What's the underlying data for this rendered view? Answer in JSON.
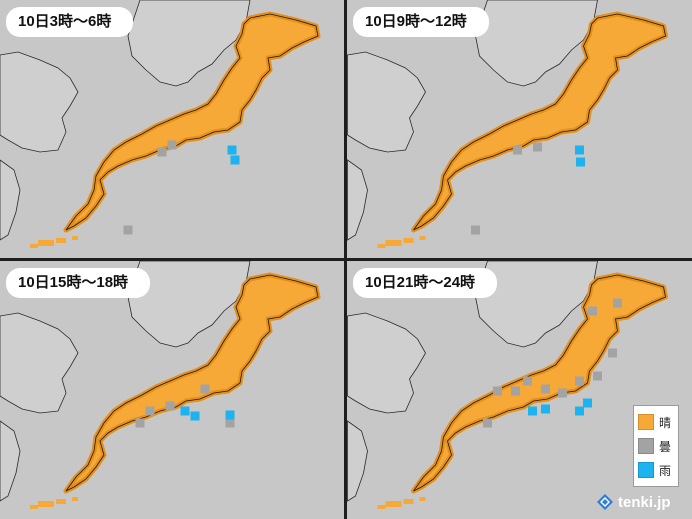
{
  "panels": [
    {
      "title": "10日3時〜6時",
      "clouds": [
        [
          172,
          145
        ],
        [
          162,
          152
        ],
        [
          128,
          230
        ]
      ],
      "rain": [
        [
          232,
          150
        ],
        [
          235,
          160
        ]
      ]
    },
    {
      "title": "10日9時〜12時",
      "clouds": [
        [
          190,
          147
        ],
        [
          170,
          150
        ],
        [
          128,
          230
        ]
      ],
      "rain": [
        [
          232,
          150
        ],
        [
          233,
          162
        ]
      ]
    },
    {
      "title": "10日15時〜18時",
      "clouds": [
        [
          150,
          400
        ],
        [
          170,
          395
        ],
        [
          205,
          378
        ],
        [
          230,
          412
        ],
        [
          140,
          412
        ]
      ],
      "rain": [
        [
          185,
          400
        ],
        [
          195,
          405
        ],
        [
          230,
          404
        ]
      ]
    },
    {
      "title": "10日21時〜24時",
      "clouds": [
        [
          150,
          380
        ],
        [
          168,
          380
        ],
        [
          180,
          370
        ],
        [
          198,
          378
        ],
        [
          215,
          382
        ],
        [
          232,
          370
        ],
        [
          250,
          365
        ],
        [
          265,
          342
        ],
        [
          245,
          300
        ],
        [
          270,
          292
        ],
        [
          140,
          412
        ]
      ],
      "rain": [
        [
          185,
          400
        ],
        [
          198,
          398
        ],
        [
          232,
          400
        ],
        [
          240,
          392
        ]
      ]
    }
  ],
  "legend": [
    {
      "label": "晴",
      "color": "#f6a937"
    },
    {
      "label": "曇",
      "color": "#a3a3a3"
    },
    {
      "label": "雨",
      "color": "#1eb3ef"
    }
  ],
  "brand": {
    "name": "tenki.jp",
    "icon": "tenki-logo-icon"
  },
  "colors": {
    "sea": "#c7c7c7",
    "land": "#cfcfcf",
    "sunny": "#f6a937",
    "cloudy": "#a3a3a3",
    "rain": "#1eb3ef"
  }
}
